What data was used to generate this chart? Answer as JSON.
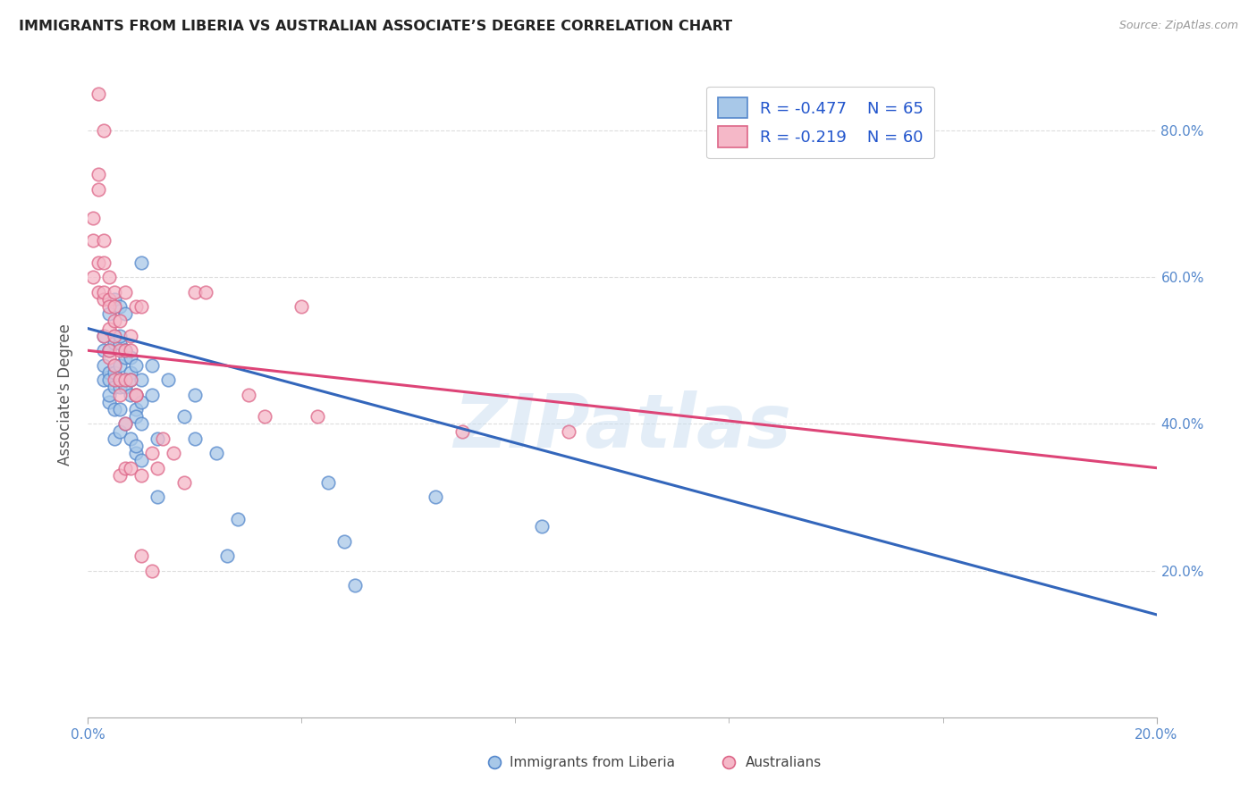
{
  "title": "IMMIGRANTS FROM LIBERIA VS AUSTRALIAN ASSOCIATE’S DEGREE CORRELATION CHART",
  "source": "Source: ZipAtlas.com",
  "ylabel": "Associate's Degree",
  "watermark": "ZIPatlas",
  "legend_label1": "Immigrants from Liberia",
  "legend_label2": "Australians",
  "xlim": [
    0.0,
    0.2
  ],
  "ylim": [
    0.0,
    0.88
  ],
  "blue_color": "#a8c8e8",
  "pink_color": "#f5b8c8",
  "blue_edge_color": "#5588cc",
  "pink_edge_color": "#dd6688",
  "blue_line_color": "#3366bb",
  "pink_line_color": "#dd4477",
  "blue_trendline": [
    [
      0.0,
      0.53
    ],
    [
      0.2,
      0.14
    ]
  ],
  "pink_trendline": [
    [
      0.0,
      0.5
    ],
    [
      0.2,
      0.34
    ]
  ],
  "blue_scatter": [
    [
      0.003,
      0.48
    ],
    [
      0.003,
      0.5
    ],
    [
      0.003,
      0.52
    ],
    [
      0.003,
      0.46
    ],
    [
      0.004,
      0.55
    ],
    [
      0.004,
      0.5
    ],
    [
      0.004,
      0.47
    ],
    [
      0.004,
      0.43
    ],
    [
      0.004,
      0.5
    ],
    [
      0.004,
      0.46
    ],
    [
      0.004,
      0.44
    ],
    [
      0.005,
      0.42
    ],
    [
      0.005,
      0.52
    ],
    [
      0.005,
      0.48
    ],
    [
      0.005,
      0.45
    ],
    [
      0.005,
      0.38
    ],
    [
      0.005,
      0.57
    ],
    [
      0.005,
      0.51
    ],
    [
      0.005,
      0.47
    ],
    [
      0.006,
      0.42
    ],
    [
      0.006,
      0.56
    ],
    [
      0.006,
      0.51
    ],
    [
      0.006,
      0.48
    ],
    [
      0.006,
      0.45
    ],
    [
      0.006,
      0.39
    ],
    [
      0.006,
      0.52
    ],
    [
      0.007,
      0.49
    ],
    [
      0.007,
      0.46
    ],
    [
      0.007,
      0.55
    ],
    [
      0.007,
      0.5
    ],
    [
      0.007,
      0.45
    ],
    [
      0.007,
      0.4
    ],
    [
      0.007,
      0.5
    ],
    [
      0.008,
      0.47
    ],
    [
      0.008,
      0.44
    ],
    [
      0.008,
      0.38
    ],
    [
      0.008,
      0.49
    ],
    [
      0.008,
      0.46
    ],
    [
      0.009,
      0.42
    ],
    [
      0.009,
      0.36
    ],
    [
      0.009,
      0.48
    ],
    [
      0.009,
      0.44
    ],
    [
      0.009,
      0.41
    ],
    [
      0.009,
      0.37
    ],
    [
      0.01,
      0.46
    ],
    [
      0.01,
      0.43
    ],
    [
      0.01,
      0.4
    ],
    [
      0.01,
      0.35
    ],
    [
      0.012,
      0.48
    ],
    [
      0.012,
      0.44
    ],
    [
      0.013,
      0.38
    ],
    [
      0.013,
      0.3
    ],
    [
      0.015,
      0.46
    ],
    [
      0.018,
      0.41
    ],
    [
      0.02,
      0.44
    ],
    [
      0.02,
      0.38
    ],
    [
      0.024,
      0.36
    ],
    [
      0.026,
      0.22
    ],
    [
      0.028,
      0.27
    ],
    [
      0.045,
      0.32
    ],
    [
      0.048,
      0.24
    ],
    [
      0.05,
      0.18
    ],
    [
      0.065,
      0.3
    ],
    [
      0.085,
      0.26
    ],
    [
      0.01,
      0.62
    ]
  ],
  "pink_scatter": [
    [
      0.001,
      0.68
    ],
    [
      0.001,
      0.65
    ],
    [
      0.001,
      0.6
    ],
    [
      0.002,
      0.72
    ],
    [
      0.002,
      0.62
    ],
    [
      0.002,
      0.58
    ],
    [
      0.002,
      0.85
    ],
    [
      0.002,
      0.74
    ],
    [
      0.003,
      0.57
    ],
    [
      0.003,
      0.8
    ],
    [
      0.003,
      0.65
    ],
    [
      0.003,
      0.58
    ],
    [
      0.003,
      0.52
    ],
    [
      0.003,
      0.62
    ],
    [
      0.004,
      0.57
    ],
    [
      0.004,
      0.53
    ],
    [
      0.004,
      0.49
    ],
    [
      0.004,
      0.6
    ],
    [
      0.004,
      0.56
    ],
    [
      0.004,
      0.5
    ],
    [
      0.005,
      0.46
    ],
    [
      0.005,
      0.58
    ],
    [
      0.005,
      0.54
    ],
    [
      0.005,
      0.48
    ],
    [
      0.005,
      0.56
    ],
    [
      0.005,
      0.52
    ],
    [
      0.006,
      0.46
    ],
    [
      0.006,
      0.33
    ],
    [
      0.006,
      0.54
    ],
    [
      0.006,
      0.5
    ],
    [
      0.006,
      0.44
    ],
    [
      0.007,
      0.5
    ],
    [
      0.007,
      0.46
    ],
    [
      0.007,
      0.4
    ],
    [
      0.007,
      0.34
    ],
    [
      0.007,
      0.58
    ],
    [
      0.008,
      0.52
    ],
    [
      0.008,
      0.46
    ],
    [
      0.008,
      0.34
    ],
    [
      0.008,
      0.5
    ],
    [
      0.009,
      0.44
    ],
    [
      0.009,
      0.56
    ],
    [
      0.009,
      0.44
    ],
    [
      0.01,
      0.33
    ],
    [
      0.01,
      0.56
    ],
    [
      0.01,
      0.22
    ],
    [
      0.012,
      0.36
    ],
    [
      0.012,
      0.2
    ],
    [
      0.013,
      0.34
    ],
    [
      0.014,
      0.38
    ],
    [
      0.016,
      0.36
    ],
    [
      0.018,
      0.32
    ],
    [
      0.02,
      0.58
    ],
    [
      0.022,
      0.58
    ],
    [
      0.03,
      0.44
    ],
    [
      0.033,
      0.41
    ],
    [
      0.04,
      0.56
    ],
    [
      0.043,
      0.41
    ],
    [
      0.07,
      0.39
    ],
    [
      0.09,
      0.39
    ]
  ],
  "background_color": "#ffffff",
  "grid_color": "#dddddd"
}
